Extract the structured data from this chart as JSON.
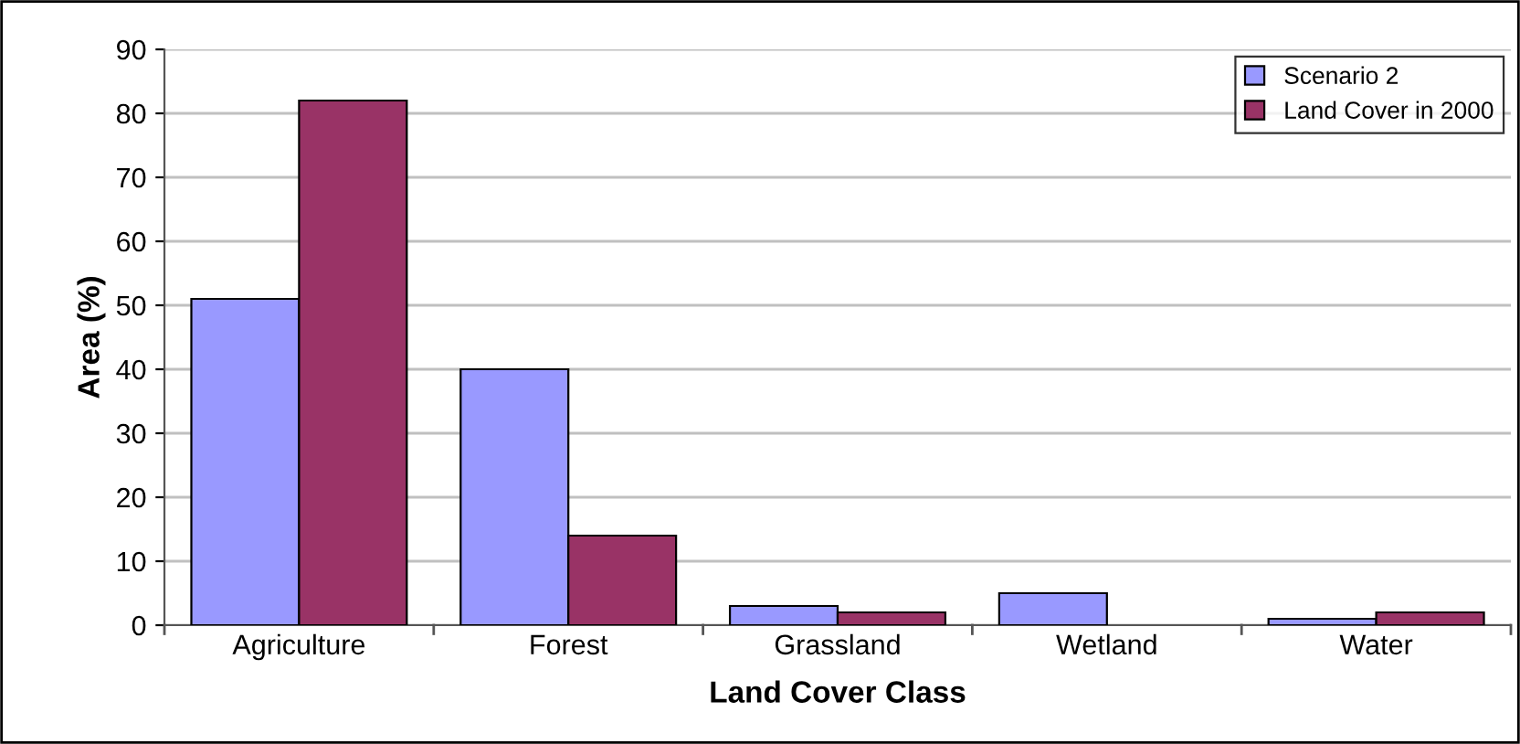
{
  "chart_data": {
    "type": "bar",
    "xlabel": "Land Cover Class",
    "ylabel": "Area (%)",
    "categories": [
      "Agriculture",
      "Forest",
      "Grassland",
      "Wetland",
      "Water"
    ],
    "series": [
      {
        "name": "Scenario 2",
        "color": "#9999ff",
        "values": [
          51,
          40,
          3,
          5,
          1
        ]
      },
      {
        "name": "Land Cover in 2000",
        "color": "#993366",
        "values": [
          82,
          14,
          2,
          null,
          2
        ]
      }
    ],
    "ylim": [
      0,
      90
    ],
    "yticks": [
      0,
      10,
      20,
      30,
      40,
      50,
      60,
      70,
      80,
      90
    ],
    "grid": "y",
    "legend": "top right"
  }
}
